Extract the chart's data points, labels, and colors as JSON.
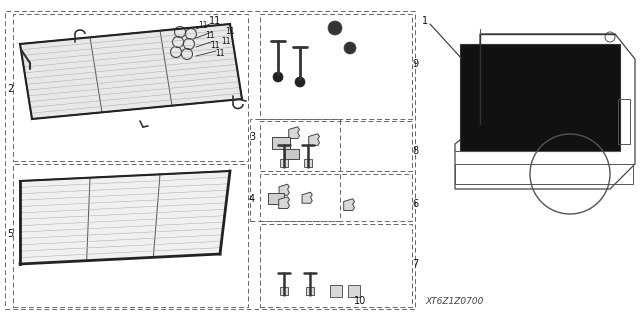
{
  "bg_color": "#ffffff",
  "diagram_code": "XT6Z1Z0700",
  "line_color": "#444444",
  "dash_color": "#666666"
}
